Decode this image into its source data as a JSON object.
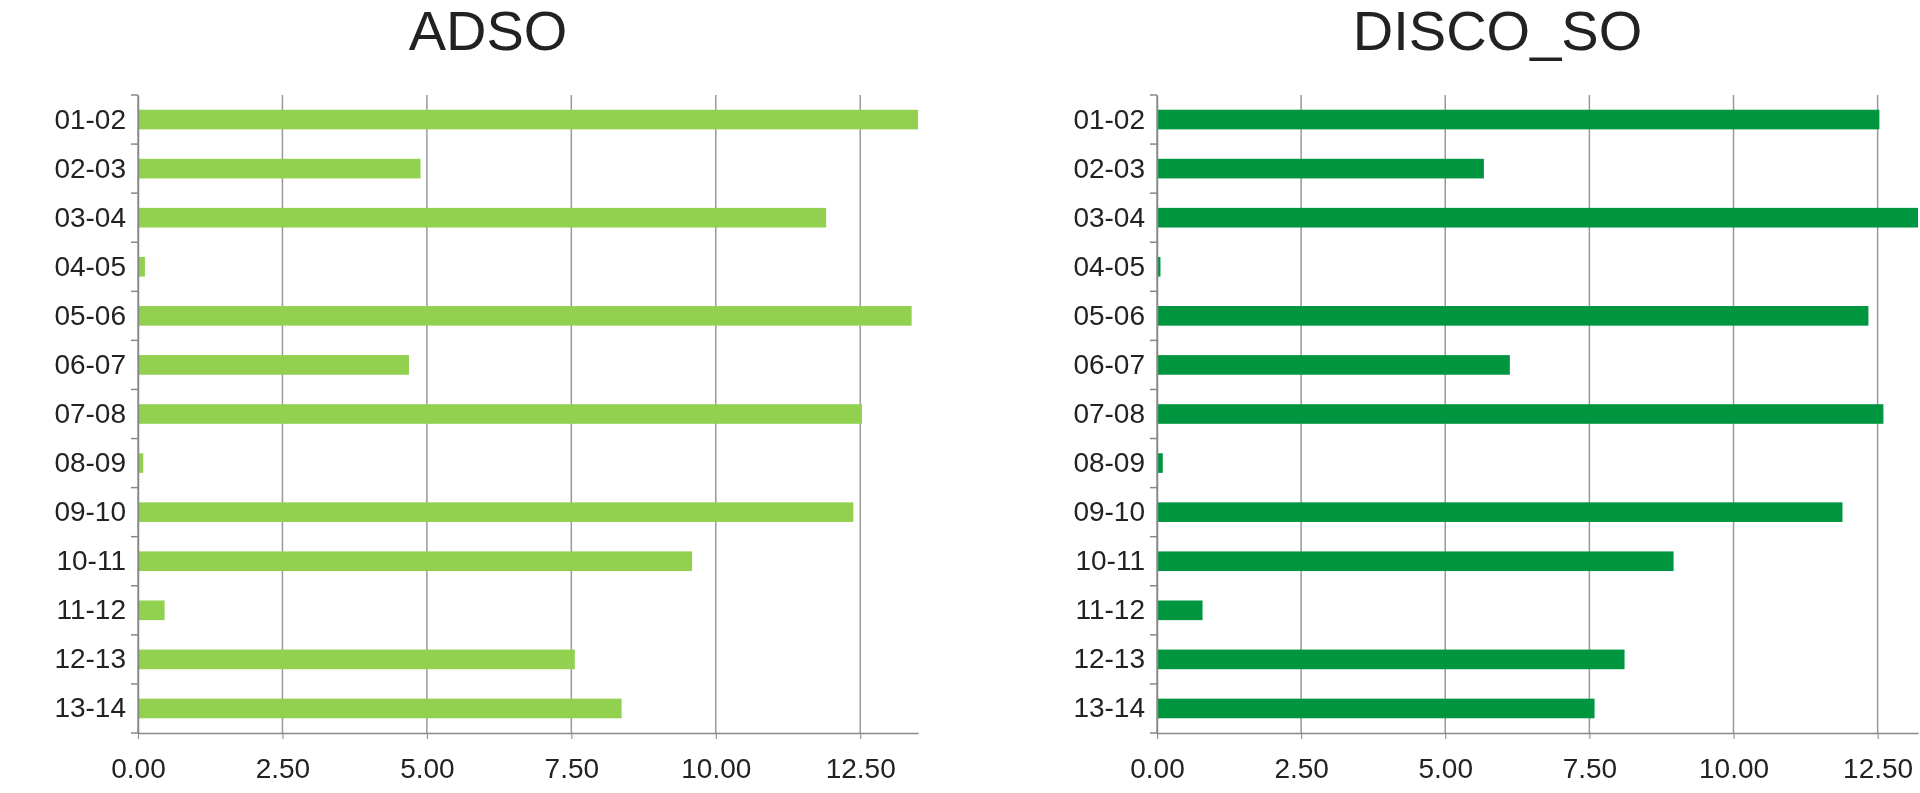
{
  "chart_data": [
    {
      "type": "bar",
      "orientation": "horizontal",
      "title": "ADSO",
      "categories": [
        "01-02",
        "02-03",
        "03-04",
        "04-05",
        "05-06",
        "06-07",
        "07-08",
        "08-09",
        "09-10",
        "10-11",
        "11-12",
        "12-13",
        "13-14"
      ],
      "values": [
        13.5,
        4.89,
        11.91,
        0.12,
        13.39,
        4.69,
        12.53,
        0.09,
        12.38,
        9.59,
        0.46,
        7.56,
        8.37
      ],
      "color": "#92d050",
      "xlim": [
        0,
        13.5
      ],
      "xticks": [
        {
          "value": 0,
          "label": "0.00"
        },
        {
          "value": 2.5,
          "label": "2.50"
        },
        {
          "value": 5,
          "label": "5.00"
        },
        {
          "value": 7.5,
          "label": "7.50"
        },
        {
          "value": 10,
          "label": "10.00"
        },
        {
          "value": 12.5,
          "label": "12.50"
        }
      ],
      "grid": "x"
    },
    {
      "type": "bar",
      "orientation": "horizontal",
      "title": "DISCO_SO",
      "categories": [
        "01-02",
        "02-03",
        "03-04",
        "04-05",
        "05-06",
        "06-07",
        "07-08",
        "08-09",
        "09-10",
        "10-11",
        "11-12",
        "12-13",
        "13-14"
      ],
      "values": [
        12.53,
        5.67,
        13.2,
        0.06,
        12.34,
        6.12,
        12.6,
        0.1,
        11.89,
        8.96,
        0.79,
        8.11,
        7.59
      ],
      "color": "#00963f",
      "xlim": [
        0,
        13.2
      ],
      "xticks": [
        {
          "value": 0,
          "label": "0.00"
        },
        {
          "value": 2.5,
          "label": "2.50"
        },
        {
          "value": 5,
          "label": "5.00"
        },
        {
          "value": 7.5,
          "label": "7.50"
        },
        {
          "value": 10,
          "label": "10.00"
        },
        {
          "value": 12.5,
          "label": "12.50"
        }
      ],
      "grid": "x"
    }
  ]
}
